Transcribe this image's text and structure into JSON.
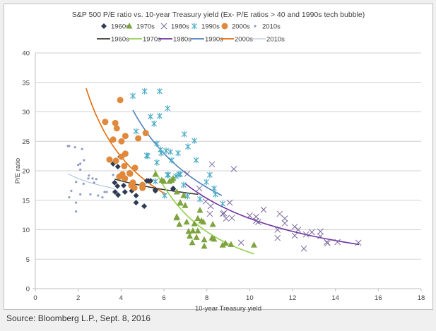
{
  "chart_data": {
    "type": "scatter",
    "title": "S&P 500 P/E ratio vs. 10-year Treasury yield (Ex- P/E ratios > 40 and 1990s tech bubble)",
    "xlabel": "10-year Treasury yield",
    "ylabel": "P/E ratio",
    "xlim": [
      0,
      18
    ],
    "ylim": [
      0,
      40
    ],
    "xticks": [
      0,
      2,
      4,
      6,
      8,
      10,
      12,
      14,
      16,
      18
    ],
    "yticks": [
      0,
      5,
      10,
      15,
      20,
      25,
      30,
      35,
      40
    ],
    "grid": "horizontal",
    "legend_placement": "top",
    "series": [
      {
        "name": "1960s",
        "marker": "diamond",
        "color": "#2E3B52",
        "trend_color": "#3B3B2E",
        "trend": {
          "type": "power",
          "range": [
            3.7,
            7.6
          ],
          "endpoints": [
            18.6,
            16.0
          ]
        },
        "points": [
          [
            3.63,
            21.2
          ],
          [
            3.85,
            20.7
          ],
          [
            3.96,
            22.4
          ],
          [
            3.7,
            18
          ],
          [
            3.83,
            17.4
          ],
          [
            4.12,
            17.5
          ],
          [
            3.72,
            16.4
          ],
          [
            3.86,
            15.9
          ],
          [
            4.18,
            16.4
          ],
          [
            4.5,
            16.6
          ],
          [
            4.7,
            15.8
          ],
          [
            4.7,
            14.6
          ],
          [
            5.08,
            14
          ],
          [
            5.2,
            18.3
          ],
          [
            5.38,
            18.3
          ],
          [
            5.6,
            16.6
          ],
          [
            6.43,
            16.9
          ],
          [
            5.28,
            18.3
          ],
          [
            5.6,
            16.8
          ],
          [
            6.43,
            17
          ]
        ]
      },
      {
        "name": "1970s",
        "marker": "triangle",
        "color": "#7FA43F",
        "trend_color": "#92D050",
        "trend": {
          "type": "power",
          "range": [
            5.57,
            10.2
          ],
          "endpoints": [
            20.2,
            5.9
          ]
        },
        "points": [
          [
            5.9,
            18.4
          ],
          [
            6.36,
            18.4
          ],
          [
            6.76,
            14.5
          ],
          [
            6.99,
            14.1
          ],
          [
            7.68,
            13.3
          ],
          [
            6.59,
            12
          ],
          [
            6.72,
            10.9
          ],
          [
            7.06,
            11.3
          ],
          [
            7.58,
            11.9
          ],
          [
            7.75,
            11.5
          ],
          [
            7.84,
            11.3
          ],
          [
            7.42,
            11
          ],
          [
            8.28,
            10.9
          ],
          [
            7.15,
            9.7
          ],
          [
            7.35,
            9.8
          ],
          [
            7.58,
            9.8
          ],
          [
            7.2,
            8.9
          ],
          [
            7.52,
            8.7
          ],
          [
            7.88,
            8.3
          ],
          [
            8.24,
            8.6
          ],
          [
            8.34,
            8.4
          ],
          [
            7.32,
            7.8
          ],
          [
            7.88,
            7.2
          ],
          [
            8.74,
            7.4
          ],
          [
            8.87,
            7.7
          ],
          [
            9.13,
            7.5
          ],
          [
            10.2,
            7.4
          ],
          [
            5.6,
            19.4
          ],
          [
            6.0,
            18.2
          ],
          [
            6.26,
            18.2
          ],
          [
            6.43,
            18.7
          ],
          [
            6.92,
            15.8
          ],
          [
            6.6,
            16.4
          ],
          [
            6.76,
            14.6
          ],
          [
            6.6,
            12.2
          ]
        ]
      },
      {
        "name": "1980s",
        "marker": "x",
        "color": "#7B6AA0",
        "trend_color": "#7030A0",
        "trend": {
          "type": "power",
          "range": [
            7.0,
            15.1
          ],
          "endpoints": [
            17.8,
            7.5
          ]
        },
        "points": [
          [
            8.24,
            21.1
          ],
          [
            9.26,
            20.3
          ],
          [
            7.09,
            19.5
          ],
          [
            7.65,
            17
          ],
          [
            8.18,
            14
          ],
          [
            9.07,
            14.6
          ],
          [
            8.74,
            12.7
          ],
          [
            8.9,
            11.9
          ],
          [
            9.17,
            12
          ],
          [
            8.14,
            12.7
          ],
          [
            10,
            12.4
          ],
          [
            10.3,
            12.2
          ],
          [
            10.4,
            11.3
          ],
          [
            10.65,
            13.4
          ],
          [
            11.4,
            12.7
          ],
          [
            11.64,
            11.9
          ],
          [
            11.64,
            11.1
          ],
          [
            11.3,
            10
          ],
          [
            11.3,
            8.6
          ],
          [
            12.1,
            10.5
          ],
          [
            12.26,
            10
          ],
          [
            12.1,
            9
          ],
          [
            12.53,
            6.8
          ],
          [
            12.63,
            9.2
          ],
          [
            12.9,
            9.6
          ],
          [
            13.3,
            9.7
          ],
          [
            13.3,
            8.9
          ],
          [
            13.6,
            7.9
          ],
          [
            13.63,
            7.7
          ],
          [
            14.1,
            7.9
          ],
          [
            15.07,
            7.8
          ],
          [
            9.6,
            7.8
          ],
          [
            7.95,
            14.8
          ],
          [
            8.8,
            12.8
          ],
          [
            10.3,
            11.5
          ]
        ]
      },
      {
        "name": "1990s",
        "marker": "asterisk",
        "color": "#4BACC6",
        "trend_color": "#4F81BD",
        "trend": {
          "type": "power",
          "range": [
            4.55,
            8.7
          ],
          "endpoints": [
            30.3,
            15.8
          ]
        },
        "points": [
          [
            4.55,
            32.7
          ],
          [
            5.1,
            33.5
          ],
          [
            5.8,
            33.5
          ],
          [
            6.17,
            30.6
          ],
          [
            5.37,
            29.2
          ],
          [
            5.8,
            29.3
          ],
          [
            5.54,
            28.0
          ],
          [
            4.7,
            26.7
          ],
          [
            6.95,
            26.2
          ],
          [
            7.42,
            25.1
          ],
          [
            7.12,
            24.1
          ],
          [
            5.67,
            24.6
          ],
          [
            5.24,
            22.5
          ],
          [
            5.87,
            23
          ],
          [
            6.1,
            23.4
          ],
          [
            6.3,
            23.2
          ],
          [
            6.66,
            23
          ],
          [
            6.36,
            21.8
          ],
          [
            7.5,
            21.8
          ],
          [
            5.67,
            21.4
          ],
          [
            8.14,
            19.3
          ],
          [
            7.98,
            18.1
          ],
          [
            8.34,
            17
          ],
          [
            8.4,
            16.0
          ],
          [
            6.76,
            19.4
          ],
          [
            6.56,
            19.1
          ],
          [
            6.2,
            19.3
          ],
          [
            6.92,
            17.6
          ],
          [
            7.1,
            15.7
          ],
          [
            7.68,
            15.2
          ],
          [
            6.03,
            15.8
          ],
          [
            5.6,
            18.2
          ],
          [
            5.2,
            22.6
          ],
          [
            5.84,
            23.6
          ],
          [
            6.17,
            19.3
          ],
          [
            6.7,
            19.4
          ],
          [
            8.74,
            14.4
          ]
        ]
      },
      {
        "name": "2000s",
        "marker": "circle",
        "color": "#E0893D",
        "trend_color": "#E46C0A",
        "trend": {
          "type": "power",
          "range": [
            2.37,
            6.1
          ],
          "endpoints": [
            34,
            16
          ]
        },
        "points": [
          [
            3.96,
            32
          ],
          [
            3.26,
            28.3
          ],
          [
            3.73,
            28.1
          ],
          [
            3.8,
            27.2
          ],
          [
            4.2,
            25.9
          ],
          [
            3.63,
            25.3
          ],
          [
            4.02,
            25
          ],
          [
            4.8,
            25.5
          ],
          [
            5.15,
            26.4
          ],
          [
            4.2,
            22.9
          ],
          [
            4.02,
            22.4
          ],
          [
            3.46,
            21.9
          ],
          [
            3.76,
            21.7
          ],
          [
            4.15,
            20.8
          ],
          [
            4.65,
            20.5
          ],
          [
            4.06,
            19.4
          ],
          [
            3.92,
            19
          ],
          [
            4.42,
            19.5
          ],
          [
            4.18,
            18.7
          ],
          [
            4.55,
            18
          ],
          [
            4.48,
            17.5
          ],
          [
            4.62,
            17.1
          ],
          [
            5.0,
            17.6
          ],
          [
            5.0,
            17.1
          ],
          [
            4.4,
            19.6
          ]
        ]
      },
      {
        "name": "2010s",
        "marker": "dot",
        "color": "#8D9CC4",
        "trend_color": "#A6BDDB",
        "trend": {
          "type": "power",
          "range": [
            1.52,
            3.7
          ],
          "endpoints": [
            19.5,
            17
          ]
        },
        "points": [
          [
            1.52,
            24.2
          ],
          [
            1.58,
            24.2
          ],
          [
            1.85,
            24.0
          ],
          [
            2.18,
            23.7
          ],
          [
            2.27,
            21.8
          ],
          [
            2.1,
            21.2
          ],
          [
            2.0,
            21.0
          ],
          [
            2.1,
            20.2
          ],
          [
            2.5,
            19.2
          ],
          [
            2.47,
            18.7
          ],
          [
            2.67,
            18.7
          ],
          [
            2.84,
            18.6
          ],
          [
            1.9,
            18.1
          ],
          [
            2.25,
            17.8
          ],
          [
            2.74,
            18
          ],
          [
            1.68,
            16.6
          ],
          [
            2.1,
            16
          ],
          [
            2.57,
            16
          ],
          [
            2.93,
            15.8
          ],
          [
            3.13,
            15.5
          ],
          [
            3.23,
            16.4
          ],
          [
            3.33,
            16.4
          ],
          [
            3.63,
            19.3
          ],
          [
            1.58,
            15.5
          ],
          [
            1.9,
            14.6
          ],
          [
            1.9,
            13.1
          ]
        ]
      }
    ]
  },
  "source": "Source: Bloomberg L.P., Sept. 8, 2016"
}
